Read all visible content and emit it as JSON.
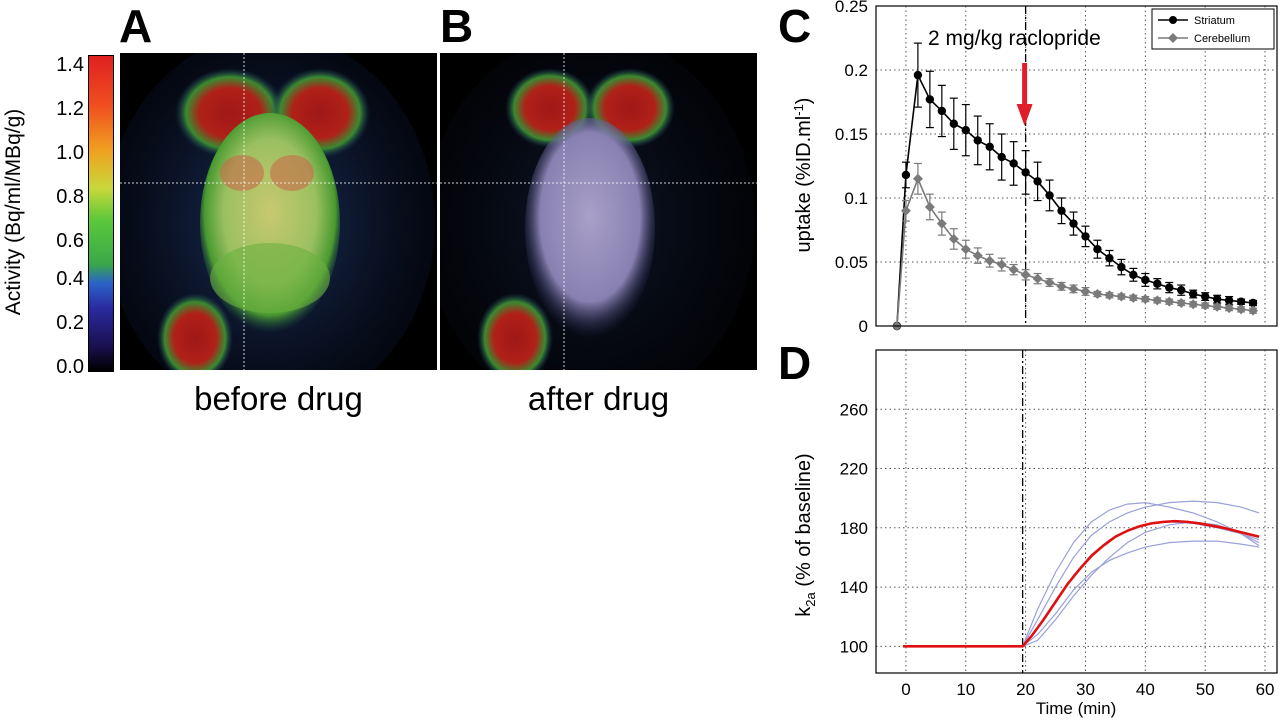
{
  "panels": {
    "A": {
      "letter": "A",
      "caption": "before drug"
    },
    "B": {
      "letter": "B",
      "caption": "after drug"
    },
    "C": {
      "letter": "C"
    },
    "D": {
      "letter": "D"
    }
  },
  "colorbar": {
    "label": "Activity (Bq/ml/MBq/g)",
    "ticks": [
      "1.4",
      "1.2",
      "1.0",
      "0.8",
      "0.6",
      "0.4",
      "0.2",
      "0.0"
    ],
    "range": [
      0.0,
      1.4
    ]
  },
  "chart_data": [
    {
      "id": "C",
      "type": "line",
      "ylabel": "uptake (%ID.ml",
      "ylabel_sup": "-1",
      "ylabel_close": ")",
      "ylim": [
        0,
        0.25
      ],
      "xlim": [
        -5,
        62
      ],
      "yticks": [
        "0",
        "0.05",
        "0.1",
        "0.15",
        "0.2",
        "0.25"
      ],
      "annotation": "2 mg/kg raclopride",
      "annotation_x": 20,
      "grid": true,
      "legend_position": "top-right",
      "series": [
        {
          "name": "Striatum",
          "color": "#000000",
          "marker": "circle",
          "x": [
            -1.5,
            0,
            2,
            4,
            6,
            8,
            10,
            12,
            14,
            16,
            18,
            20,
            22,
            24,
            26,
            28,
            30,
            32,
            34,
            36,
            38,
            40,
            42,
            44,
            46,
            48,
            50,
            52,
            54,
            56,
            58
          ],
          "y": [
            0,
            0.118,
            0.196,
            0.177,
            0.168,
            0.158,
            0.153,
            0.145,
            0.14,
            0.132,
            0.127,
            0.12,
            0.113,
            0.102,
            0.09,
            0.08,
            0.07,
            0.06,
            0.053,
            0.046,
            0.04,
            0.036,
            0.033,
            0.03,
            0.028,
            0.025,
            0.023,
            0.021,
            0.02,
            0.019,
            0.018
          ],
          "err": [
            0,
            0.01,
            0.025,
            0.022,
            0.02,
            0.02,
            0.02,
            0.019,
            0.018,
            0.018,
            0.017,
            0.017,
            0.015,
            0.012,
            0.01,
            0.009,
            0.008,
            0.007,
            0.006,
            0.006,
            0.005,
            0.005,
            0.004,
            0.004,
            0.004,
            0.003,
            0.003,
            0.003,
            0.003,
            0.002,
            0.002
          ]
        },
        {
          "name": "Cerebellum",
          "color": "#7a7a7a",
          "marker": "diamond",
          "x": [
            -1.5,
            0,
            2,
            4,
            6,
            8,
            10,
            12,
            14,
            16,
            18,
            20,
            22,
            24,
            26,
            28,
            30,
            32,
            34,
            36,
            38,
            40,
            42,
            44,
            46,
            48,
            50,
            52,
            54,
            56,
            58
          ],
          "y": [
            0,
            0.09,
            0.115,
            0.093,
            0.08,
            0.068,
            0.06,
            0.055,
            0.051,
            0.048,
            0.044,
            0.04,
            0.037,
            0.034,
            0.031,
            0.029,
            0.027,
            0.025,
            0.024,
            0.023,
            0.022,
            0.021,
            0.02,
            0.019,
            0.018,
            0.017,
            0.016,
            0.015,
            0.014,
            0.013,
            0.012
          ],
          "err": [
            0,
            0.008,
            0.012,
            0.01,
            0.009,
            0.008,
            0.007,
            0.006,
            0.005,
            0.005,
            0.004,
            0.004,
            0.004,
            0.003,
            0.003,
            0.003,
            0.003,
            0.002,
            0.002,
            0.002,
            0.002,
            0.002,
            0.002,
            0.002,
            0.002,
            0.002,
            0.002,
            0.002,
            0.002,
            0.002,
            0.002
          ]
        }
      ]
    },
    {
      "id": "D",
      "type": "line",
      "xlabel": "Time (min)",
      "ylabel": "k",
      "ylabel_sub": "2a",
      "ylabel_rest": " (% of baseline)",
      "xlim": [
        -5,
        62
      ],
      "ylim": [
        82,
        300
      ],
      "xticks": [
        0,
        10,
        20,
        30,
        40,
        50,
        60
      ],
      "yticks": [
        100,
        140,
        180,
        220,
        260
      ],
      "vline_x": 19.5,
      "grid": true,
      "mean": {
        "color": "#e01010",
        "x": [
          -0.5,
          19.5,
          21,
          23,
          25,
          27,
          29,
          31,
          33,
          35,
          37,
          39,
          41,
          43,
          45,
          47,
          49,
          51,
          53,
          55,
          57,
          59
        ],
        "y": [
          100,
          100,
          107,
          118,
          130,
          142,
          152,
          161,
          168,
          174,
          178,
          181,
          183,
          184,
          184.5,
          184,
          183,
          181.5,
          180,
          178,
          176,
          174
        ]
      },
      "subjects": [
        {
          "color": "#9aa0d8",
          "x": [
            19.5,
            22,
            25,
            28,
            31,
            34,
            37,
            40,
            44,
            48,
            52,
            56,
            59
          ],
          "y": [
            100,
            125,
            150,
            170,
            184,
            192,
            196,
            197,
            194,
            190,
            184,
            176,
            170
          ]
        },
        {
          "color": "#9aa0d8",
          "x": [
            19.5,
            22,
            25,
            28,
            31,
            34,
            37,
            40,
            44,
            48,
            52,
            56,
            59
          ],
          "y": [
            100,
            118,
            140,
            160,
            175,
            184,
            190,
            194,
            197,
            198,
            197,
            194,
            190
          ]
        },
        {
          "color": "#9aa0d8",
          "x": [
            19.5,
            22,
            25,
            28,
            31,
            34,
            37,
            40,
            44,
            48,
            52,
            56,
            59
          ],
          "y": [
            100,
            112,
            130,
            148,
            162,
            172,
            178,
            182,
            184,
            183,
            180,
            176,
            172
          ]
        },
        {
          "color": "#9aa0d8",
          "x": [
            19.5,
            22,
            25,
            28,
            31,
            34,
            37,
            40,
            44,
            48,
            52,
            56,
            59
          ],
          "y": [
            100,
            108,
            122,
            138,
            150,
            158,
            163,
            167,
            170,
            171,
            171,
            169,
            167
          ]
        },
        {
          "color": "#9aa0d8",
          "x": [
            19.5,
            22,
            25,
            28,
            31,
            34,
            37,
            40,
            44,
            48,
            52,
            56,
            59
          ],
          "y": [
            100,
            104,
            118,
            134,
            148,
            160,
            170,
            177,
            182,
            184,
            182,
            176,
            168
          ]
        }
      ]
    }
  ]
}
